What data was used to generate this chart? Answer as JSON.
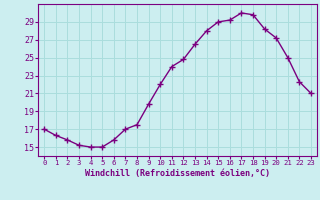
{
  "x": [
    0,
    1,
    2,
    3,
    4,
    5,
    6,
    7,
    8,
    9,
    10,
    11,
    12,
    13,
    14,
    15,
    16,
    17,
    18,
    19,
    20,
    21,
    22,
    23
  ],
  "y": [
    17.0,
    16.3,
    15.8,
    15.2,
    15.0,
    15.0,
    15.8,
    17.0,
    17.5,
    19.8,
    22.0,
    24.0,
    24.8,
    26.5,
    28.0,
    29.0,
    29.2,
    30.0,
    29.8,
    28.2,
    27.2,
    25.0,
    22.3,
    21.0
  ],
  "line_color": "#7b0080",
  "marker": "+",
  "bg_color": "#cceef0",
  "grid_color": "#aadddd",
  "xlabel": "Windchill (Refroidissement éolien,°C)",
  "ylim": [
    14.0,
    31.0
  ],
  "yticks": [
    15,
    17,
    19,
    21,
    23,
    25,
    27,
    29
  ],
  "xticks": [
    0,
    1,
    2,
    3,
    4,
    5,
    6,
    7,
    8,
    9,
    10,
    11,
    12,
    13,
    14,
    15,
    16,
    17,
    18,
    19,
    20,
    21,
    22,
    23
  ],
  "axis_color": "#7b0080",
  "label_color": "#7b0080",
  "tick_color": "#7b0080"
}
